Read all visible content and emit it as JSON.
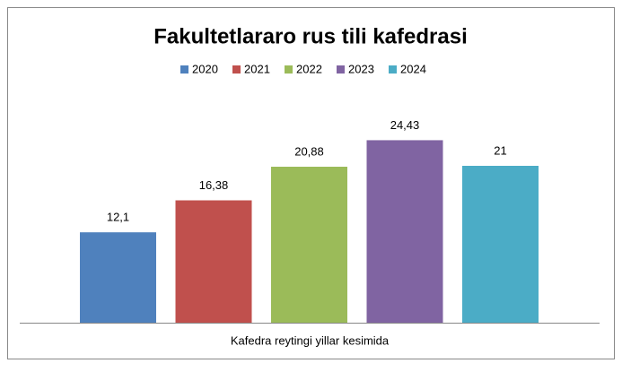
{
  "chart_data": {
    "type": "bar",
    "title": "Fakultetlararo rus tili kafedrasi",
    "categories": [
      "Kafedra reytingi yillar kesimida"
    ],
    "series": [
      {
        "name": "2020",
        "color": "#4f81bd",
        "values": [
          12.1
        ],
        "value_labels": [
          "12,1"
        ]
      },
      {
        "name": "2021",
        "color": "#c0504d",
        "values": [
          16.38
        ],
        "value_labels": [
          "16,38"
        ]
      },
      {
        "name": "2022",
        "color": "#9bbb59",
        "values": [
          20.88
        ],
        "value_labels": [
          "20,88"
        ]
      },
      {
        "name": "2023",
        "color": "#8064a2",
        "values": [
          24.43
        ],
        "value_labels": [
          "24,43"
        ]
      },
      {
        "name": "2024",
        "color": "#4bacc6",
        "values": [
          21
        ],
        "value_labels": [
          "21"
        ]
      }
    ],
    "ylim": [
      0,
      30
    ],
    "legend": "top"
  }
}
